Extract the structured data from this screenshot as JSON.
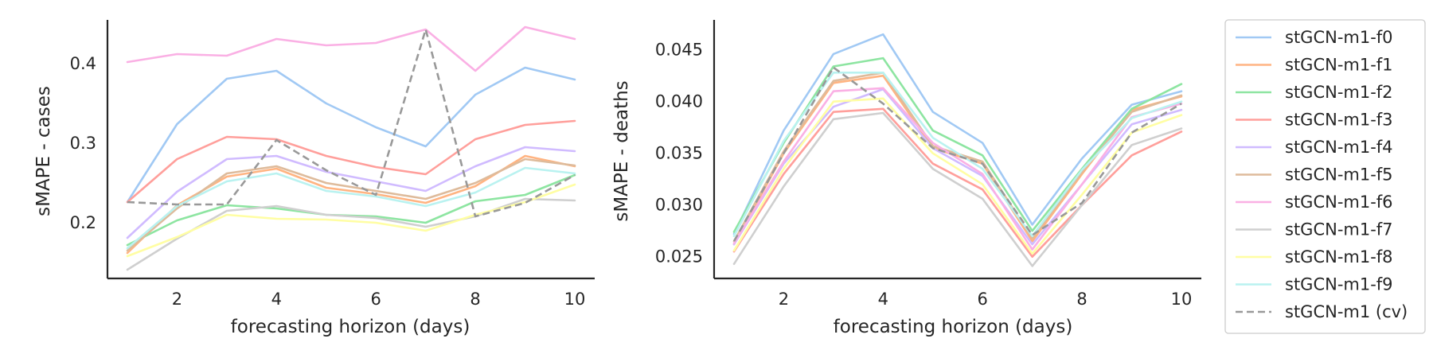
{
  "chart_data": [
    {
      "type": "line",
      "xlabel": "forecasting horizon (days)",
      "ylabel": "sMAPE - cases",
      "x": [
        1,
        2,
        3,
        4,
        5,
        6,
        7,
        8,
        9,
        10
      ],
      "xlim": [
        0.6,
        10.4
      ],
      "ylim": [
        0.13,
        0.455
      ],
      "xticks": [
        2,
        4,
        6,
        8,
        10
      ],
      "yticks": [
        0.2,
        0.3,
        0.4
      ],
      "ytick_labels": [
        "0.2",
        "0.3",
        "0.4"
      ],
      "series": [
        {
          "name": "stGCN-m1-f0",
          "values": [
            0.226,
            0.324,
            0.381,
            0.391,
            0.35,
            0.32,
            0.296,
            0.361,
            0.395,
            0.38
          ]
        },
        {
          "name": "stGCN-m1-f1",
          "values": [
            0.162,
            0.222,
            0.258,
            0.268,
            0.244,
            0.236,
            0.225,
            0.246,
            0.284,
            0.271
          ]
        },
        {
          "name": "stGCN-m1-f2",
          "values": [
            0.172,
            0.203,
            0.222,
            0.218,
            0.21,
            0.208,
            0.2,
            0.227,
            0.235,
            0.26
          ]
        },
        {
          "name": "stGCN-m1-f3",
          "values": [
            0.226,
            0.28,
            0.308,
            0.305,
            0.284,
            0.27,
            0.261,
            0.305,
            0.323,
            0.328
          ]
        },
        {
          "name": "stGCN-m1-f4",
          "values": [
            0.181,
            0.239,
            0.28,
            0.284,
            0.264,
            0.252,
            0.24,
            0.271,
            0.295,
            0.29
          ]
        },
        {
          "name": "stGCN-m1-f5",
          "values": [
            0.165,
            0.218,
            0.262,
            0.271,
            0.25,
            0.24,
            0.23,
            0.25,
            0.28,
            0.272
          ]
        },
        {
          "name": "stGCN-m1-f6",
          "values": [
            0.402,
            0.412,
            0.41,
            0.431,
            0.423,
            0.426,
            0.443,
            0.391,
            0.446,
            0.431
          ]
        },
        {
          "name": "stGCN-m1-f7",
          "values": [
            0.141,
            0.18,
            0.215,
            0.221,
            0.21,
            0.206,
            0.195,
            0.208,
            0.23,
            0.228
          ]
        },
        {
          "name": "stGCN-m1-f8",
          "values": [
            0.158,
            0.182,
            0.21,
            0.205,
            0.204,
            0.2,
            0.19,
            0.21,
            0.226,
            0.248
          ]
        },
        {
          "name": "stGCN-m1-f9",
          "values": [
            0.168,
            0.221,
            0.252,
            0.262,
            0.24,
            0.233,
            0.221,
            0.238,
            0.269,
            0.262
          ]
        },
        {
          "name": "stGCN-m1 (cv)",
          "values": [
            0.226,
            0.223,
            0.223,
            0.304,
            0.266,
            0.235,
            0.443,
            0.208,
            0.225,
            0.26
          ],
          "dashed": true
        }
      ]
    },
    {
      "type": "line",
      "xlabel": "forecasting horizon (days)",
      "ylabel": "sMAPE - deaths",
      "x": [
        1,
        2,
        3,
        4,
        5,
        6,
        7,
        8,
        9,
        10
      ],
      "xlim": [
        0.6,
        10.4
      ],
      "ylim": [
        0.0229,
        0.0479
      ],
      "xticks": [
        2,
        4,
        6,
        8,
        10
      ],
      "yticks": [
        0.025,
        0.03,
        0.035,
        0.04,
        0.045
      ],
      "ytick_labels": [
        "0.025",
        "0.030",
        "0.035",
        "0.040",
        "0.045"
      ],
      "series": [
        {
          "name": "stGCN-m1-f0",
          "values": [
            0.0272,
            0.0372,
            0.0446,
            0.0465,
            0.039,
            0.036,
            0.0281,
            0.0345,
            0.0397,
            0.041
          ]
        },
        {
          "name": "stGCN-m1-f1",
          "values": [
            0.0262,
            0.035,
            0.0418,
            0.0425,
            0.0355,
            0.034,
            0.0265,
            0.033,
            0.0392,
            0.0405
          ]
        },
        {
          "name": "stGCN-m1-f2",
          "values": [
            0.0274,
            0.036,
            0.0434,
            0.0442,
            0.0372,
            0.0348,
            0.0275,
            0.0335,
            0.0393,
            0.0417
          ]
        },
        {
          "name": "stGCN-m1-f3",
          "values": [
            0.0255,
            0.033,
            0.039,
            0.0393,
            0.034,
            0.0315,
            0.025,
            0.03,
            0.0348,
            0.0371
          ]
        },
        {
          "name": "stGCN-m1-f4",
          "values": [
            0.0262,
            0.034,
            0.0395,
            0.0412,
            0.0355,
            0.0328,
            0.0262,
            0.032,
            0.0378,
            0.0392
          ]
        },
        {
          "name": "stGCN-m1-f5",
          "values": [
            0.0265,
            0.0352,
            0.042,
            0.0428,
            0.0357,
            0.0342,
            0.0268,
            0.0332,
            0.039,
            0.0406
          ]
        },
        {
          "name": "stGCN-m1-f6",
          "values": [
            0.0263,
            0.0342,
            0.041,
            0.0413,
            0.036,
            0.033,
            0.0257,
            0.032,
            0.0385,
            0.0398
          ]
        },
        {
          "name": "stGCN-m1-f7",
          "values": [
            0.0243,
            0.0318,
            0.0383,
            0.0389,
            0.0335,
            0.0306,
            0.0241,
            0.03,
            0.0358,
            0.0374
          ]
        },
        {
          "name": "stGCN-m1-f8",
          "values": [
            0.0256,
            0.0335,
            0.04,
            0.0403,
            0.035,
            0.032,
            0.0253,
            0.031,
            0.037,
            0.0387
          ]
        },
        {
          "name": "stGCN-m1-f9",
          "values": [
            0.027,
            0.0362,
            0.0428,
            0.0428,
            0.0365,
            0.0335,
            0.027,
            0.0334,
            0.0384,
            0.04
          ]
        },
        {
          "name": "stGCN-m1 (cv)",
          "values": [
            0.0265,
            0.035,
            0.0433,
            0.0398,
            0.0355,
            0.034,
            0.0271,
            0.0302,
            0.037,
            0.0398
          ],
          "dashed": true
        }
      ]
    }
  ],
  "legend": {
    "entries": [
      "stGCN-m1-f0",
      "stGCN-m1-f1",
      "stGCN-m1-f2",
      "stGCN-m1-f3",
      "stGCN-m1-f4",
      "stGCN-m1-f5",
      "stGCN-m1-f6",
      "stGCN-m1-f7",
      "stGCN-m1-f8",
      "stGCN-m1-f9",
      "stGCN-m1 (cv)"
    ],
    "placement": "right"
  },
  "colors": {
    "stGCN-m1-f0": "#a1c9f4",
    "stGCN-m1-f1": "#ffb482",
    "stGCN-m1-f2": "#8de5a1",
    "stGCN-m1-f3": "#ff9f9b",
    "stGCN-m1-f4": "#d0bbff",
    "stGCN-m1-f5": "#debb9b",
    "stGCN-m1-f6": "#fab0e4",
    "stGCN-m1-f7": "#cfcfcf",
    "stGCN-m1-f8": "#fffea3",
    "stGCN-m1-f9": "#b9f2f0",
    "stGCN-m1 (cv)": "#999999"
  }
}
